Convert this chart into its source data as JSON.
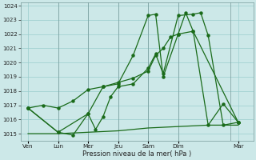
{
  "xlabel": "Pression niveau de la mer( hPa )",
  "ylim": [
    1014.5,
    1024.2
  ],
  "yticks": [
    1015,
    1016,
    1017,
    1018,
    1019,
    1020,
    1021,
    1022,
    1023,
    1024
  ],
  "bg_color": "#cce8e8",
  "grid_color": "#99cccc",
  "line_color": "#1a6b1a",
  "xtick_labels": [
    "Ven",
    "Lun",
    "Mer",
    "Jeu",
    "Sam",
    "Dim",
    "Mar"
  ],
  "xtick_positions": [
    0,
    2,
    4,
    6,
    8,
    10,
    14
  ],
  "xlim": [
    -0.5,
    15.0
  ],
  "day_lines": [
    2,
    4,
    6,
    8,
    10,
    13.5
  ],
  "s1_x": [
    0,
    1,
    2,
    3,
    4,
    5,
    6,
    7,
    8,
    8.5,
    9,
    9.5,
    10,
    10.5,
    11,
    14
  ],
  "s1_y": [
    1016.8,
    1017.0,
    1016.8,
    1017.3,
    1018.1,
    1018.3,
    1018.6,
    1018.9,
    1019.4,
    1020.5,
    1021.0,
    1021.8,
    1022.0,
    1023.5,
    1022.2,
    1015.8
  ],
  "s2_x": [
    0,
    2,
    3,
    4,
    4.5,
    5,
    5.5,
    6,
    7,
    8,
    8.5,
    9,
    10,
    11,
    11.5,
    12,
    13,
    14
  ],
  "s2_y": [
    1016.8,
    1015.1,
    1014.9,
    1016.4,
    1015.3,
    1016.2,
    1017.6,
    1018.3,
    1018.5,
    1019.6,
    1020.6,
    1019.2,
    1023.3,
    1023.4,
    1023.5,
    1021.9,
    1015.6,
    1015.8
  ],
  "s3_x": [
    0,
    2,
    4,
    5,
    6,
    7,
    8,
    8.5,
    9,
    10,
    11,
    12,
    13,
    14
  ],
  "s3_y": [
    1016.8,
    1015.1,
    1016.4,
    1018.3,
    1018.5,
    1020.5,
    1023.3,
    1023.4,
    1019.0,
    1022.0,
    1022.2,
    1015.6,
    1017.1,
    1015.8
  ],
  "flat_x": [
    0,
    2,
    4,
    6,
    8,
    10,
    12,
    14
  ],
  "flat_y": [
    1015.0,
    1015.0,
    1015.1,
    1015.2,
    1015.4,
    1015.5,
    1015.6,
    1015.6
  ]
}
